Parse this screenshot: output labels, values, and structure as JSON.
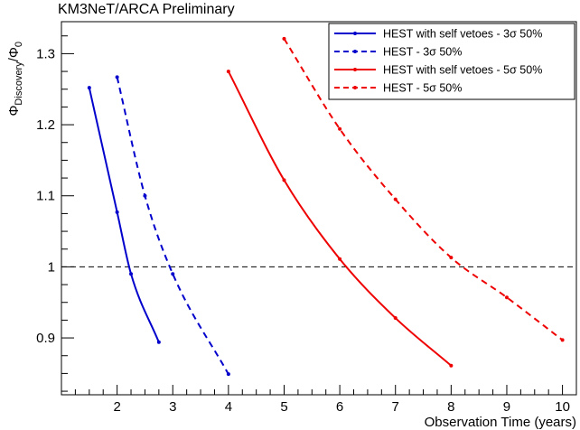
{
  "chart_data": {
    "type": "line",
    "title": "KM3NeT/ARCA Preliminary",
    "xlabel": "Observation Time (years)",
    "ylabel": "Φ_Discovery/Φ_0",
    "ylabel_main": "Φ",
    "ylabel_sub1": "Discovery",
    "ylabel_sep": "/Φ",
    "ylabel_sub2": "0",
    "xlim": [
      1,
      10.25
    ],
    "ylim": [
      0.82,
      1.345
    ],
    "x_ticks": [
      2,
      3,
      4,
      5,
      6,
      7,
      8,
      9,
      10
    ],
    "y_ticks": [
      0.9,
      1.0,
      1.1,
      1.2,
      1.3
    ],
    "y_tick_labels": [
      "0.9",
      "1",
      "1.1",
      "1.2",
      "1.3"
    ],
    "reference_line": {
      "y": 1.0,
      "style": "dashed",
      "color": "#000000"
    },
    "legend_position": "top-right",
    "series": [
      {
        "name": "HEST with self vetoes - 3σ 50%",
        "color": "#0000cc",
        "dashed": false,
        "x": [
          1.5,
          2.0,
          2.25,
          2.75
        ],
        "y": [
          1.252,
          1.077,
          0.99,
          0.894
        ]
      },
      {
        "name": "HEST - 3σ 50%",
        "color": "#0000cc",
        "dashed": true,
        "x": [
          2.0,
          2.5,
          3.0,
          4.0
        ],
        "y": [
          1.267,
          1.1,
          0.99,
          0.849
        ]
      },
      {
        "name": "HEST with self vetoes - 5σ 50%",
        "color": "#ee0000",
        "dashed": false,
        "x": [
          4.0,
          5.0,
          6.0,
          7.0,
          8.0
        ],
        "y": [
          1.275,
          1.122,
          1.011,
          0.928,
          0.861
        ]
      },
      {
        "name": "HEST - 5σ 50%",
        "color": "#ee0000",
        "dashed": true,
        "x": [
          5.0,
          6.0,
          7.0,
          8.0,
          9.0,
          10.0
        ],
        "y": [
          1.321,
          1.194,
          1.095,
          1.013,
          0.957,
          0.897
        ]
      }
    ]
  }
}
